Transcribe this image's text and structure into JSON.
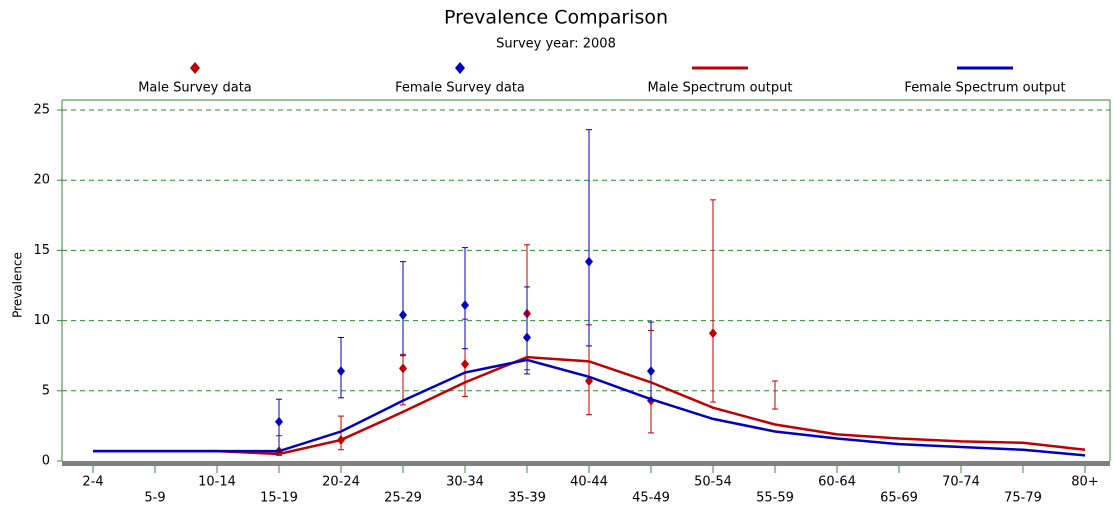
{
  "chart_data": {
    "type": "line",
    "title": "Prevalence Comparison",
    "subtitle": "Survey year: 2008",
    "y_label": "Prevalence",
    "categories": [
      "2-4",
      "5-9",
      "10-14",
      "15-19",
      "20-24",
      "25-29",
      "30-34",
      "35-39",
      "40-44",
      "45-49",
      "50-54",
      "55-59",
      "60-64",
      "65-69",
      "70-74",
      "75-79",
      "80+"
    ],
    "ylim": [
      0,
      25
    ],
    "yticks": [
      0,
      5,
      10,
      15,
      20,
      25
    ],
    "grid": true,
    "legend": "top",
    "series": [
      {
        "name": "Male Survey data",
        "color": "#c00000",
        "style": "marker",
        "values": [
          null,
          null,
          null,
          0.7,
          1.5,
          6.6,
          6.9,
          10.5,
          5.7,
          4.3,
          9.1,
          null,
          null,
          null,
          null,
          null,
          null
        ],
        "low": [
          null,
          null,
          null,
          0.4,
          0.8,
          4.0,
          4.6,
          6.5,
          3.3,
          2.0,
          4.2,
          3.7,
          null,
          null,
          null,
          null,
          null
        ],
        "high": [
          null,
          null,
          null,
          1.8,
          3.2,
          7.6,
          10.1,
          15.4,
          9.7,
          9.3,
          18.6,
          5.7,
          null,
          null,
          null,
          null,
          null
        ]
      },
      {
        "name": "Female Survey data",
        "color": "#0000c0",
        "style": "marker",
        "values": [
          null,
          null,
          null,
          2.8,
          6.4,
          10.4,
          11.1,
          8.8,
          14.2,
          6.4,
          null,
          null,
          null,
          null,
          null,
          null,
          null
        ],
        "low": [
          null,
          null,
          null,
          0.5,
          4.5,
          7.5,
          8.0,
          6.2,
          8.2,
          4.3,
          null,
          null,
          null,
          null,
          null,
          null,
          null
        ],
        "high": [
          null,
          null,
          null,
          4.4,
          8.8,
          14.2,
          15.2,
          12.4,
          23.6,
          9.9,
          null,
          null,
          null,
          null,
          null,
          null,
          null
        ]
      },
      {
        "name": "Male Spectrum output",
        "color": "#c00000",
        "style": "line",
        "values": [
          0.7,
          0.7,
          0.7,
          0.5,
          1.5,
          3.5,
          5.6,
          7.4,
          7.1,
          5.6,
          3.8,
          2.6,
          1.9,
          1.6,
          1.4,
          1.3,
          0.8
        ]
      },
      {
        "name": "Female Spectrum output",
        "color": "#0000c0",
        "style": "line",
        "values": [
          0.7,
          0.7,
          0.7,
          0.7,
          2.1,
          4.3,
          6.3,
          7.2,
          6.0,
          4.4,
          3.0,
          2.1,
          1.6,
          1.2,
          1.0,
          0.8,
          0.4
        ]
      }
    ]
  }
}
